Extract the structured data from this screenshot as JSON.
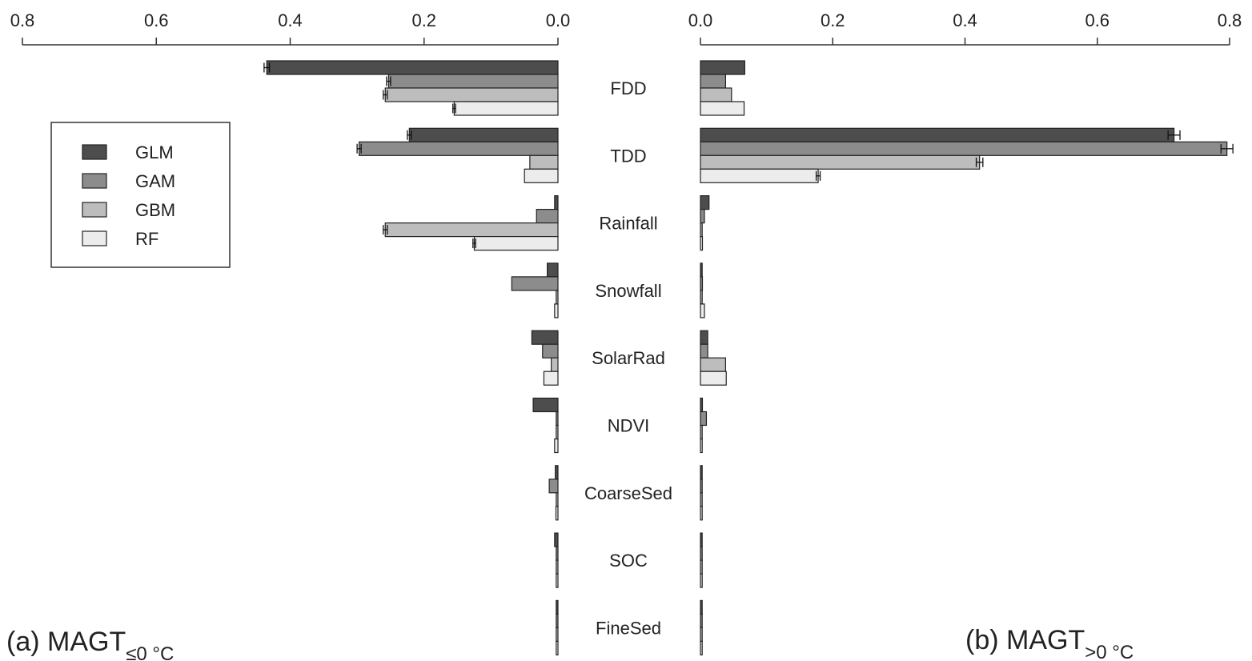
{
  "chart_data": [
    {
      "type": "bar",
      "orientation": "horizontal",
      "direction": "reversed",
      "panel_label": "(a) MAGT",
      "panel_subscript": "≤0 °C",
      "xlim": [
        0,
        0.8
      ],
      "x_ticks": [
        "0.8",
        "0.6",
        "0.4",
        "0.2",
        "0.0"
      ],
      "categories": [
        "FDD",
        "TDD",
        "Rainfall",
        "Snowfall",
        "SolarRad",
        "NDVI",
        "CoarseSed",
        "SOC",
        "FineSed"
      ],
      "series": [
        {
          "name": "GLM",
          "values": [
            0.435,
            0.222,
            0.005,
            0.016,
            0.039,
            0.037,
            0.004,
            0.005,
            0.002
          ],
          "errors": [
            0.004,
            0.003,
            0,
            0,
            0,
            0,
            0,
            0,
            0
          ]
        },
        {
          "name": "GAM",
          "values": [
            0.253,
            0.297,
            0.032,
            0.069,
            0.023,
            0.001,
            0.013,
            0.001,
            0.001
          ],
          "errors": [
            0.003,
            0.003,
            0,
            0,
            0,
            0,
            0,
            0,
            0
          ]
        },
        {
          "name": "GBM",
          "values": [
            0.258,
            0.042,
            0.258,
            0.001,
            0.01,
            0.001,
            0.001,
            0.001,
            0.001
          ],
          "errors": [
            0.003,
            0,
            0.003,
            0,
            0,
            0,
            0,
            0,
            0
          ]
        },
        {
          "name": "RF",
          "values": [
            0.155,
            0.05,
            0.125,
            0.005,
            0.021,
            0.005,
            0.003,
            0.002,
            0.002
          ],
          "errors": [
            0.002,
            0,
            0.002,
            0,
            0,
            0,
            0,
            0,
            0
          ]
        }
      ],
      "legend_position": "left"
    },
    {
      "type": "bar",
      "orientation": "horizontal",
      "direction": "normal",
      "panel_label": "(b) MAGT",
      "panel_subscript": ">0 °C",
      "xlim": [
        0,
        0.8
      ],
      "x_ticks": [
        "0.0",
        "0.2",
        "0.4",
        "0.6",
        "0.8"
      ],
      "categories": [
        "FDD",
        "TDD",
        "Rainfall",
        "Snowfall",
        "SolarRad",
        "NDVI",
        "CoarseSed",
        "SOC",
        "FineSed"
      ],
      "series": [
        {
          "name": "GLM",
          "values": [
            0.067,
            0.716,
            0.013,
            0.002,
            0.011,
            0.003,
            0.001,
            0.002,
            0.001
          ],
          "errors": [
            0,
            0.009,
            0,
            0,
            0,
            0,
            0,
            0,
            0
          ]
        },
        {
          "name": "GAM",
          "values": [
            0.038,
            0.796,
            0.006,
            0.003,
            0.011,
            0.009,
            0.002,
            0.002,
            0.001
          ],
          "errors": [
            0,
            0.009,
            0,
            0,
            0,
            0,
            0,
            0,
            0
          ]
        },
        {
          "name": "GBM",
          "values": [
            0.047,
            0.422,
            0.001,
            0.001,
            0.038,
            0.001,
            0.001,
            0.001,
            0.001
          ],
          "errors": [
            0,
            0.005,
            0,
            0,
            0,
            0,
            0,
            0,
            0
          ]
        },
        {
          "name": "RF",
          "values": [
            0.066,
            0.178,
            0.003,
            0.006,
            0.039,
            0.002,
            0.002,
            0.002,
            0.001
          ],
          "errors": [
            0,
            0.003,
            0,
            0,
            0,
            0,
            0,
            0,
            0
          ]
        }
      ]
    }
  ],
  "legend": {
    "items": [
      {
        "label": "GLM",
        "color": "#4d4d4d"
      },
      {
        "label": "GAM",
        "color": "#8c8c8c"
      },
      {
        "label": "GBM",
        "color": "#bdbdbd"
      },
      {
        "label": "RF",
        "color": "#ececec"
      }
    ]
  }
}
